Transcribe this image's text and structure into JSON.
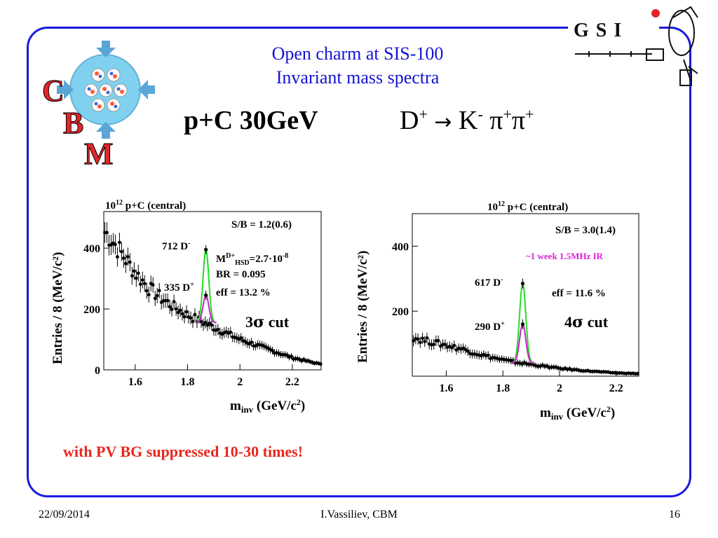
{
  "slide": {
    "title_line1": "Open charm at SIS-100",
    "title_line2": "Invariant mass spectra",
    "system": "p+C 30GeV",
    "reaction_lhs": "D",
    "reaction_lhs_sup": "+",
    "reaction_arrow": "→",
    "reaction_k": "K",
    "reaction_k_sup": "-",
    "reaction_pi1": "π",
    "reaction_pi1_sup": "+",
    "reaction_pi2": "π",
    "reaction_pi2_sup": "+",
    "note": "with PV BG suppressed 10-30 times!",
    "footer_date": "22/09/2014",
    "footer_author": "I.Vassiliev, CBM",
    "footer_page": "16",
    "logo_letters": [
      "C",
      "B",
      "M"
    ],
    "logo_right_text": "GSI"
  },
  "colors": {
    "frame": "#1a1adf",
    "title": "#1414d4",
    "note": "#e8271d",
    "signal_green": "#22dd22",
    "signal_magenta": "#cc22cc",
    "purple_text": "#dd22dd",
    "logo_red": "#e3262a"
  },
  "chart_data": [
    {
      "type": "scatter",
      "title_base": "10",
      "title_exp": "12",
      "title_rest": "  p+C (central)",
      "xlabel_main": "m",
      "xlabel_sub": "inv",
      "xlabel_rest": " (GeV/c",
      "xlabel_sup": "2",
      "xlabel_end": ")",
      "ylabel": "Entries / 8 (MeV/c²)",
      "xlim": [
        1.48,
        2.31
      ],
      "ylim": [
        0,
        520
      ],
      "xticks": [
        "1.6",
        "1.8",
        "2",
        "2.2"
      ],
      "xtick_values": [
        1.6,
        1.8,
        2.0,
        2.2
      ],
      "yticks": [
        "0",
        "200",
        "400"
      ],
      "ytick_values": [
        0,
        200,
        400
      ],
      "annotations": {
        "sb": "S/B = 1.2(0.6)",
        "green_label": "712 D",
        "green_label_sup": "-",
        "magenta_label": "335 D",
        "magenta_label_sup": "+",
        "m_label": "M",
        "m_sup": "D+",
        "m_sub": "HSD",
        "m_value": "=2.7·10",
        "m_exp": "-8",
        "br": "BR = 0.095",
        "eff": "eff = 13.2 %",
        "cut_num": "3",
        "cut_sym": "σ",
        "cut_rest": " cut"
      },
      "background": {
        "start": [
          1.48,
          455
        ],
        "points": [
          [
            1.5,
            440
          ],
          [
            1.55,
            380
          ],
          [
            1.6,
            320
          ],
          [
            1.65,
            270
          ],
          [
            1.7,
            235
          ],
          [
            1.75,
            205
          ],
          [
            1.8,
            180
          ],
          [
            1.85,
            160
          ],
          [
            1.9,
            140
          ],
          [
            1.95,
            120
          ],
          [
            2.0,
            100
          ],
          [
            2.05,
            85
          ],
          [
            2.1,
            70
          ],
          [
            2.15,
            55
          ],
          [
            2.2,
            40
          ],
          [
            2.25,
            30
          ],
          [
            2.3,
            20
          ]
        ]
      },
      "series": [
        {
          "name": "712 D-",
          "peak_x": 1.87,
          "peak_y": 395,
          "base_y": 155,
          "sigma": 0.011
        },
        {
          "name": "335 D+",
          "peak_x": 1.87,
          "peak_y": 245,
          "base_y": 155,
          "sigma": 0.011
        }
      ]
    },
    {
      "type": "scatter",
      "title_base": "10",
      "title_exp": "12",
      "title_rest": " p+C (central)",
      "xlabel_main": "m",
      "xlabel_sub": "inv",
      "xlabel_rest": " (GeV/c",
      "xlabel_sup": "2",
      "xlabel_end": ")",
      "ylabel": "Entries / 8 (MeV/c²)",
      "xlim": [
        1.48,
        2.28
      ],
      "ylim": [
        0,
        500
      ],
      "xticks": [
        "1.6",
        "1.8",
        "2",
        "2.2"
      ],
      "xtick_values": [
        1.6,
        1.8,
        2.0,
        2.2
      ],
      "yticks": [
        "200",
        "400"
      ],
      "ytick_values": [
        200,
        400
      ],
      "annotations": {
        "sb": "S/B = 3.0(1.4)",
        "ir": "~1 week  1.5MHz IR",
        "green_label": "617 D",
        "green_label_sup": "-",
        "magenta_label": "290 D",
        "magenta_label_sup": "+",
        "eff": "eff = 11.6 %",
        "cut_num": "4",
        "cut_sym": "σ",
        "cut_rest": " cut"
      },
      "background": {
        "start": [
          1.48,
          120
        ],
        "points": [
          [
            1.5,
            115
          ],
          [
            1.55,
            105
          ],
          [
            1.6,
            95
          ],
          [
            1.65,
            85
          ],
          [
            1.7,
            72
          ],
          [
            1.75,
            60
          ],
          [
            1.8,
            50
          ],
          [
            1.85,
            42
          ],
          [
            1.9,
            36
          ],
          [
            1.95,
            30
          ],
          [
            2.0,
            24
          ],
          [
            2.05,
            20
          ],
          [
            2.1,
            16
          ],
          [
            2.15,
            13
          ],
          [
            2.2,
            10
          ],
          [
            2.27,
            8
          ]
        ]
      },
      "series": [
        {
          "name": "617 D-",
          "peak_x": 1.87,
          "peak_y": 285,
          "base_y": 40,
          "sigma": 0.011
        },
        {
          "name": "290 D+",
          "peak_x": 1.87,
          "peak_y": 160,
          "base_y": 40,
          "sigma": 0.011
        }
      ]
    }
  ]
}
